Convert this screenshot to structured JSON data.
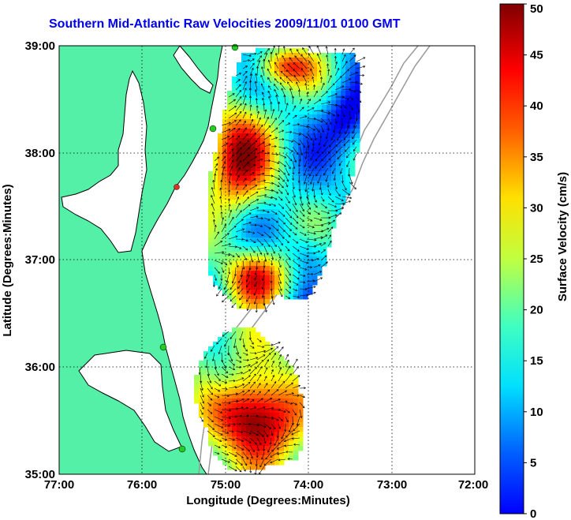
{
  "map": {
    "title": "Southern Mid-Atlantic Raw Velocities 2009/11/01 0100 GMT",
    "xlabel": "Longitude (Degrees:Minutes)",
    "ylabel": "Latitude (Degrees:Minutes)",
    "x_ticks": [
      "77:00",
      "76:00",
      "75:00",
      "74:00",
      "73:00",
      "72:00"
    ],
    "y_ticks": [
      "39:00",
      "38:00",
      "37:00",
      "36:00",
      "35:00"
    ],
    "land_color": "#55f0a8",
    "coast_color": "#000000",
    "isobath_color": "#999999",
    "station_color": "#22cc22",
    "grid": true
  },
  "colorbar": {
    "label": "Surface Velocity (cm/s)",
    "ticks": [
      "50",
      "45",
      "40",
      "35",
      "30",
      "25",
      "20",
      "15",
      "10",
      "5",
      "0"
    ],
    "min": 0,
    "max": 50,
    "colormap": "jet"
  },
  "chart_data": {
    "type": "heatmap",
    "title": "Southern Mid-Atlantic Raw Velocities 2009/11/01 0100 GMT",
    "xlabel": "Longitude (Degrees:Minutes)",
    "ylabel": "Latitude (Degrees:Minutes)",
    "xlim": [
      -77,
      -72
    ],
    "ylim": [
      35,
      39
    ],
    "colorbar_range": [
      0,
      50
    ],
    "colorbar_label": "Surface Velocity (cm/s)"
  }
}
